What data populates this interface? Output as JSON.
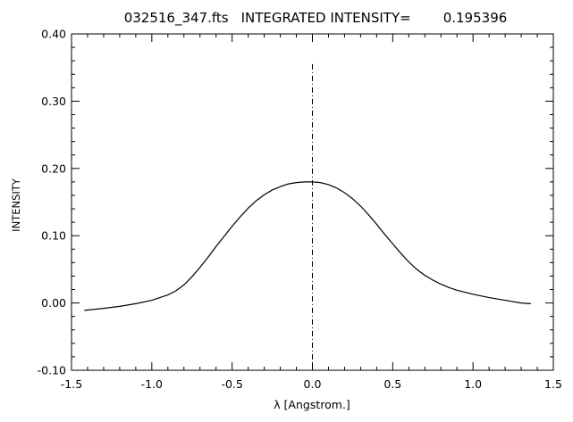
{
  "chart_data": {
    "type": "line",
    "title": {
      "filename": "032516_347.fts",
      "label": "INTEGRATED INTENSITY=",
      "value": "0.195396"
    },
    "xlabel": "λ [Angstrom.]",
    "ylabel": "INTENSITY",
    "xlim": [
      -1.5,
      1.5
    ],
    "ylim": [
      -0.1,
      0.4
    ],
    "x_ticks": [
      "-1.5",
      "-1.0",
      "-0.5",
      "0.0",
      "0.5",
      "1.0",
      "1.5"
    ],
    "y_ticks": [
      "-0.10",
      "0.00",
      "0.10",
      "0.20",
      "0.30",
      "0.40"
    ],
    "grid": false,
    "series": [
      {
        "x": [
          -1.42,
          -1.3,
          -1.2,
          -1.1,
          -1.0,
          -0.95,
          -0.9,
          -0.85,
          -0.8,
          -0.75,
          -0.7,
          -0.65,
          -0.6,
          -0.55,
          -0.5,
          -0.45,
          -0.4,
          -0.35,
          -0.3,
          -0.25,
          -0.2,
          -0.15,
          -0.1,
          -0.05,
          0.0,
          0.05,
          0.1,
          0.15,
          0.2,
          0.25,
          0.3,
          0.35,
          0.4,
          0.45,
          0.5,
          0.55,
          0.6,
          0.65,
          0.7,
          0.75,
          0.8,
          0.85,
          0.9,
          0.95,
          1.0,
          1.1,
          1.2,
          1.3,
          1.36
        ],
        "y": [
          -0.011,
          -0.008,
          -0.005,
          -0.001,
          0.004,
          0.008,
          0.012,
          0.018,
          0.027,
          0.039,
          0.053,
          0.068,
          0.084,
          0.099,
          0.114,
          0.128,
          0.141,
          0.152,
          0.161,
          0.168,
          0.173,
          0.177,
          0.179,
          0.18,
          0.18,
          0.179,
          0.176,
          0.171,
          0.164,
          0.155,
          0.144,
          0.131,
          0.117,
          0.102,
          0.088,
          0.074,
          0.061,
          0.05,
          0.041,
          0.034,
          0.028,
          0.023,
          0.019,
          0.016,
          0.013,
          0.008,
          0.004,
          0.0,
          -0.001
        ]
      }
    ],
    "reference_line": {
      "x": 0.0,
      "y_top": 0.355,
      "style": "dash-dot"
    }
  }
}
